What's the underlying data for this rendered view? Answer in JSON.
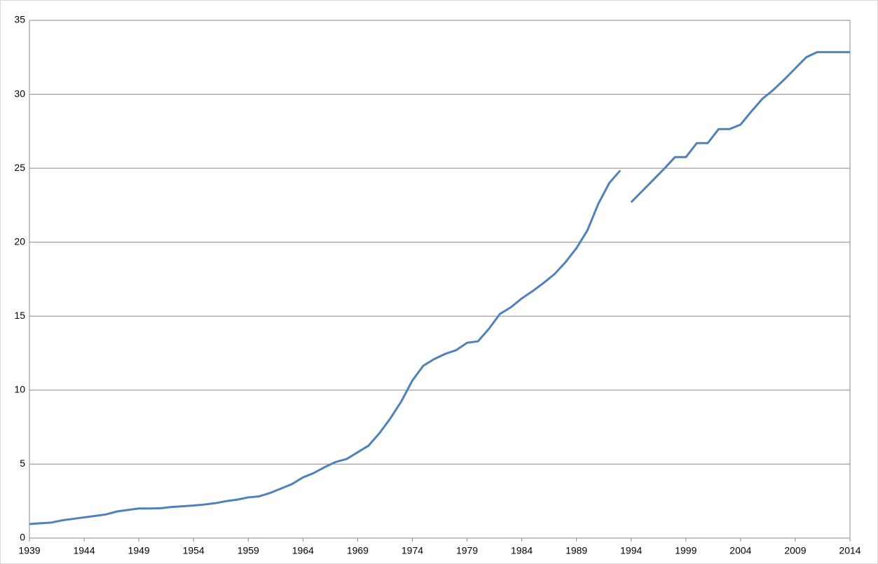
{
  "chart_data": {
    "type": "line",
    "series": [
      {
        "color": "#4f81bd",
        "x": [
          1939,
          1940,
          1941,
          1942,
          1943,
          1944,
          1945,
          1946,
          1947,
          1948,
          1949,
          1950,
          1951,
          1952,
          1953,
          1954,
          1955,
          1956,
          1957,
          1958,
          1959,
          1960,
          1961,
          1962,
          1963,
          1964,
          1965,
          1966,
          1967,
          1968,
          1969,
          1970,
          1971,
          1972,
          1973,
          1974,
          1975,
          1976,
          1977,
          1978,
          1979,
          1980,
          1981,
          1982,
          1983,
          1984,
          1985,
          1986,
          1987,
          1988,
          1989,
          1990,
          1991,
          1992,
          1993
        ],
        "values": [
          0.95,
          1.0,
          1.05,
          1.2,
          1.3,
          1.4,
          1.5,
          1.6,
          1.8,
          1.9,
          2.0,
          2.0,
          2.02,
          2.1,
          2.15,
          2.2,
          2.27,
          2.36,
          2.5,
          2.6,
          2.75,
          2.82,
          3.05,
          3.35,
          3.65,
          4.1,
          4.4,
          4.8,
          5.15,
          5.35,
          5.8,
          6.25,
          7.1,
          8.1,
          9.25,
          10.65,
          11.65,
          12.1,
          12.45,
          12.7,
          13.2,
          13.3,
          14.15,
          15.15,
          15.6,
          16.2,
          16.7,
          17.25,
          17.85,
          18.65,
          19.6,
          20.8,
          22.6,
          24.0,
          24.85
        ]
      },
      {
        "color": "#4f81bd",
        "x": [
          1994,
          1995,
          1996,
          1997,
          1998,
          1999,
          2000,
          2001,
          2002,
          2003,
          2004,
          2005,
          2006,
          2007,
          2008,
          2009,
          2010,
          2011,
          2012,
          2013,
          2014
        ],
        "values": [
          22.7,
          23.45,
          24.2,
          24.95,
          25.75,
          25.75,
          26.7,
          26.7,
          27.65,
          27.65,
          27.95,
          28.85,
          29.7,
          30.3,
          31.0,
          31.75,
          32.5,
          32.85,
          32.85,
          32.85,
          32.85
        ]
      }
    ],
    "xlim": [
      1939,
      2014
    ],
    "xticks": [
      1939,
      1944,
      1949,
      1954,
      1959,
      1964,
      1969,
      1974,
      1979,
      1984,
      1989,
      1994,
      1999,
      2004,
      2009,
      2014
    ],
    "ylim": [
      0,
      35
    ],
    "yticks": [
      0,
      5,
      10,
      15,
      20,
      25,
      30,
      35
    ],
    "grid": true
  }
}
